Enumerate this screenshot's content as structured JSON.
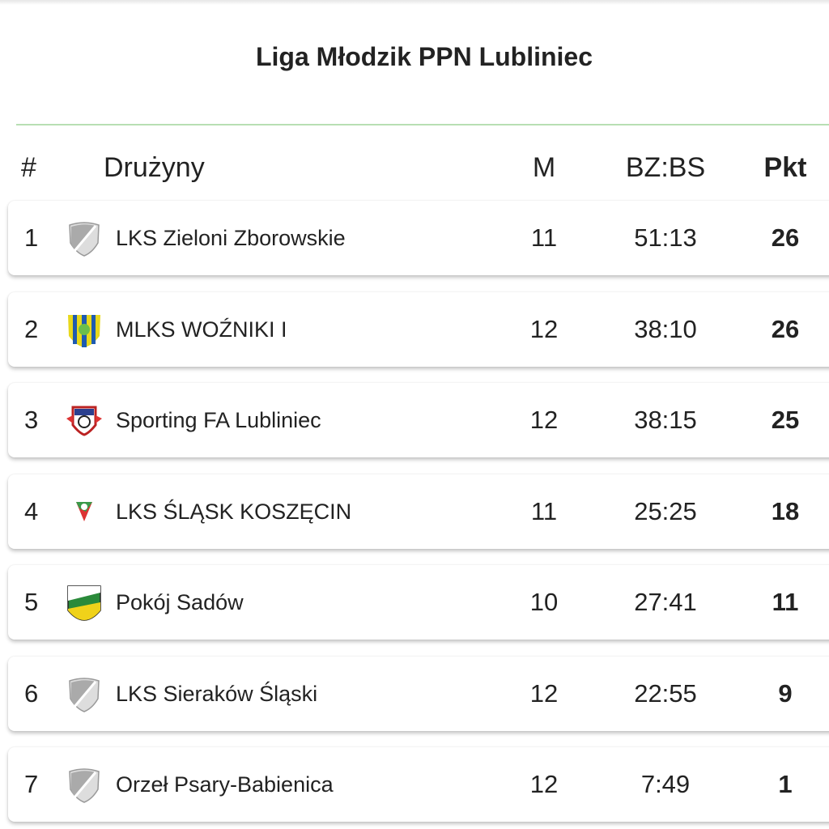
{
  "title": "Liga Młodzik PPN Lubliniec",
  "headers": {
    "pos": "#",
    "team": "Drużyny",
    "matches": "M",
    "goals": "BZ:BS",
    "points": "Pkt"
  },
  "rows": [
    {
      "pos": "1",
      "team": "LKS Zieloni Zborowskie",
      "m": "11",
      "goals": "51:13",
      "pts": "26",
      "logo": "default-shield"
    },
    {
      "pos": "2",
      "team": "MLKS WOŹNIKI I",
      "m": "12",
      "goals": "38:10",
      "pts": "26",
      "logo": "wozniki-crest"
    },
    {
      "pos": "3",
      "team": "Sporting FA Lubliniec",
      "m": "12",
      "goals": "38:15",
      "pts": "25",
      "logo": "sporting-crest"
    },
    {
      "pos": "4",
      "team": "LKS ŚLĄSK KOSZĘCIN",
      "m": "11",
      "goals": "25:25",
      "pts": "18",
      "logo": "slask-crest"
    },
    {
      "pos": "5",
      "team": "Pokój Sadów",
      "m": "10",
      "goals": "27:41",
      "pts": "11",
      "logo": "pokoj-crest"
    },
    {
      "pos": "6",
      "team": "LKS Sieraków Śląski",
      "m": "12",
      "goals": "22:55",
      "pts": "9",
      "logo": "default-shield"
    },
    {
      "pos": "7",
      "team": "Orzeł Psary-Babienica",
      "m": "12",
      "goals": "7:49",
      "pts": "1",
      "logo": "default-shield"
    }
  ]
}
